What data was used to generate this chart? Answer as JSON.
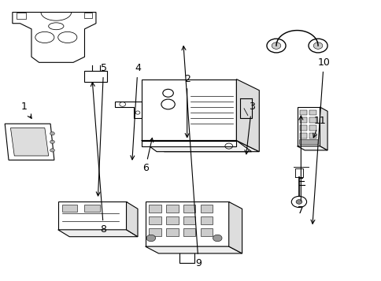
{
  "title": "",
  "background_color": "#ffffff",
  "line_color": "#000000",
  "label_color": "#000000",
  "figsize": [
    4.85,
    3.57
  ],
  "dpi": 100
}
